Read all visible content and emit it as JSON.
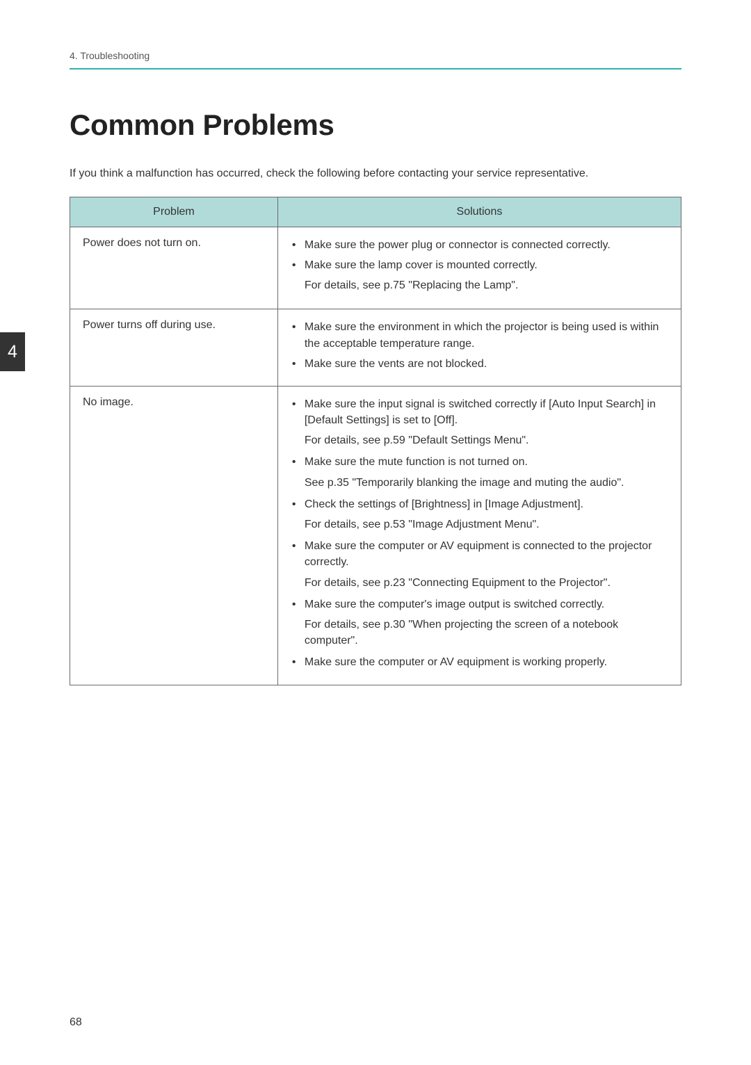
{
  "header": {
    "chapter_label": "4. Troubleshooting",
    "chapter_tab": "4"
  },
  "title": "Common Problems",
  "intro": "If you think a malfunction has occurred, check the following before contacting your service representative.",
  "table": {
    "header_col1": "Problem",
    "header_col2": "Solutions",
    "border_color": "#6a6a6a",
    "header_bg": "#b0dbd9",
    "text_color": "#333333",
    "rows": {
      "r1": {
        "problem": "Power does not turn on.",
        "s1": "Make sure the power plug or connector is connected correctly.",
        "s2": "Make sure the lamp cover is mounted correctly.",
        "s2_sub": "For details, see p.75 \"Replacing the Lamp\"."
      },
      "r2": {
        "problem": "Power turns off during use.",
        "s1": "Make sure the environment in which the projector is being used is within the acceptable temperature range.",
        "s2": "Make sure the vents are not blocked."
      },
      "r3": {
        "problem": "No image.",
        "s1": "Make sure the input signal is switched correctly if [Auto Input Search] in [Default Settings] is set to [Off].",
        "s1_sub": "For details, see p.59 \"Default Settings Menu\".",
        "s2": "Make sure the mute function is not turned on.",
        "s2_sub": "See p.35 \"Temporarily blanking the image and muting the audio\".",
        "s3": "Check the settings of [Brightness] in [Image Adjustment].",
        "s3_sub": "For details, see p.53 \"Image Adjustment Menu\".",
        "s4": "Make sure the computer or AV equipment is connected to the projector correctly.",
        "s4_sub": "For details, see p.23 \"Connecting Equipment to the Projector\".",
        "s5": "Make sure the computer's image output is switched correctly.",
        "s5_sub": "For details, see p.30 \"When projecting the screen of a notebook computer\".",
        "s6": "Make sure the computer or AV equipment is working properly."
      }
    }
  },
  "page_number": "68",
  "colors": {
    "accent": "#2db0b0",
    "tab_bg": "#333333",
    "tab_fg": "#ffffff",
    "page_bg": "#ffffff"
  }
}
